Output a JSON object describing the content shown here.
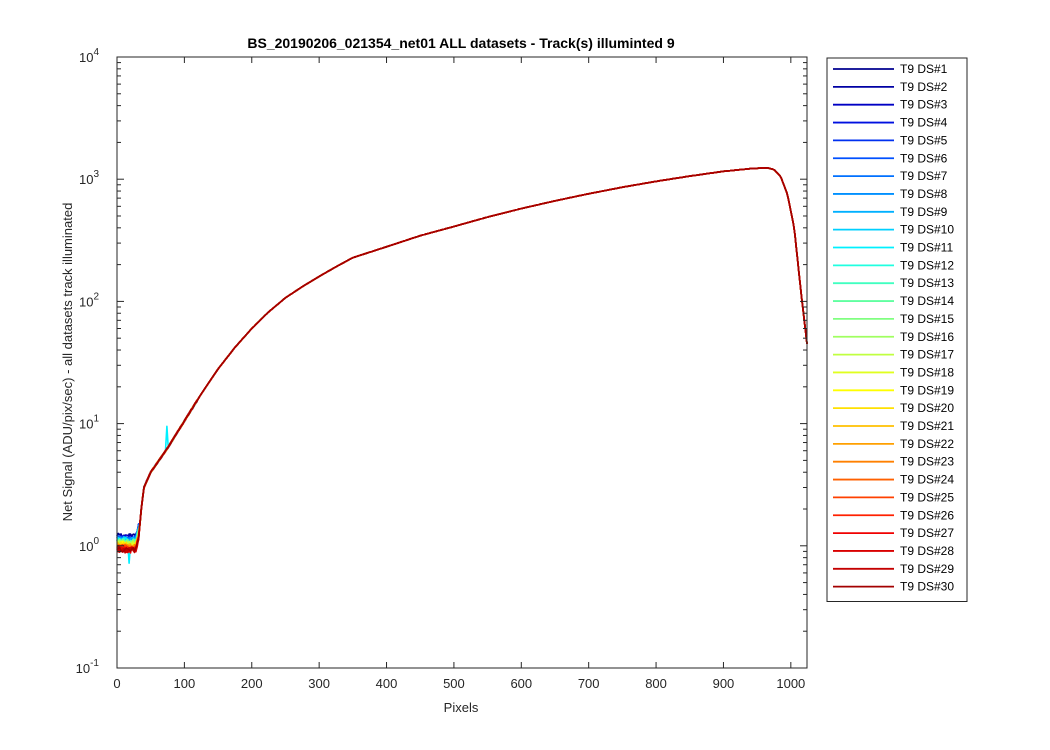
{
  "chart_data": {
    "type": "line",
    "title": "BS_20190206_021354_net01 ALL datasets - Track(s) illuminted 9",
    "xlabel": "Pixels",
    "ylabel": "Net Signal (ADU/pix/sec) - all datasets track illuminated",
    "xlim": [
      0,
      1024
    ],
    "ylim": [
      0.1,
      10000
    ],
    "yscale": "log",
    "grid": false,
    "legend_position": "outside-right",
    "xticks": [
      "0",
      "100",
      "200",
      "300",
      "400",
      "500",
      "600",
      "700",
      "800",
      "900",
      "1000"
    ],
    "yticks": [
      {
        "base": "10",
        "exp": "-1"
      },
      {
        "base": "10",
        "exp": "0"
      },
      {
        "base": "10",
        "exp": "1"
      },
      {
        "base": "10",
        "exp": "2"
      },
      {
        "base": "10",
        "exp": "3"
      },
      {
        "base": "10",
        "exp": "4"
      }
    ],
    "profile": {
      "x": [
        0,
        10,
        20,
        28,
        33,
        36,
        40,
        50,
        60,
        75,
        100,
        125,
        150,
        175,
        200,
        225,
        250,
        275,
        300,
        325,
        350,
        400,
        450,
        500,
        550,
        600,
        650,
        700,
        750,
        800,
        850,
        900,
        940,
        965,
        975,
        985,
        995,
        1005,
        1015,
        1024
      ],
      "y": [
        1.0,
        1.0,
        0.98,
        1.0,
        1.3,
        2.0,
        3.0,
        4.0,
        4.8,
        6.3,
        10.5,
        17.5,
        28,
        42,
        60,
        82,
        107,
        132,
        160,
        192,
        228,
        280,
        345,
        410,
        490,
        575,
        665,
        760,
        860,
        960,
        1060,
        1160,
        1220,
        1240,
        1200,
        1050,
        750,
        400,
        120,
        45
      ]
    },
    "series": [
      {
        "name": "T9 DS#1",
        "color": "#00008f"
      },
      {
        "name": "T9 DS#2",
        "color": "#0000a3"
      },
      {
        "name": "T9 DS#3",
        "color": "#0000c4"
      },
      {
        "name": "T9 DS#4",
        "color": "#0010e0"
      },
      {
        "name": "T9 DS#5",
        "color": "#0030f0"
      },
      {
        "name": "T9 DS#6",
        "color": "#0050ff"
      },
      {
        "name": "T9 DS#7",
        "color": "#0070ff"
      },
      {
        "name": "T9 DS#8",
        "color": "#0090ff"
      },
      {
        "name": "T9 DS#9",
        "color": "#00b0ff"
      },
      {
        "name": "T9 DS#10",
        "color": "#00d0ff"
      },
      {
        "name": "T9 DS#11",
        "color": "#00f0ff"
      },
      {
        "name": "T9 DS#12",
        "color": "#20ffe0"
      },
      {
        "name": "T9 DS#13",
        "color": "#40ffc0"
      },
      {
        "name": "T9 DS#14",
        "color": "#60ffa0"
      },
      {
        "name": "T9 DS#15",
        "color": "#80ff80"
      },
      {
        "name": "T9 DS#16",
        "color": "#a0ff60"
      },
      {
        "name": "T9 DS#17",
        "color": "#c0ff40"
      },
      {
        "name": "T9 DS#18",
        "color": "#e0ff20"
      },
      {
        "name": "T9 DS#19",
        "color": "#ffff00"
      },
      {
        "name": "T9 DS#20",
        "color": "#ffe000"
      },
      {
        "name": "T9 DS#21",
        "color": "#ffc000"
      },
      {
        "name": "T9 DS#22",
        "color": "#ffa000"
      },
      {
        "name": "T9 DS#23",
        "color": "#ff8000"
      },
      {
        "name": "T9 DS#24",
        "color": "#ff6000"
      },
      {
        "name": "T9 DS#25",
        "color": "#ff4000"
      },
      {
        "name": "T9 DS#26",
        "color": "#ff2000"
      },
      {
        "name": "T9 DS#27",
        "color": "#f00000"
      },
      {
        "name": "T9 DS#28",
        "color": "#d90000"
      },
      {
        "name": "T9 DS#29",
        "color": "#c40000"
      },
      {
        "name": "T9 DS#30",
        "color": "#a30000"
      }
    ]
  }
}
